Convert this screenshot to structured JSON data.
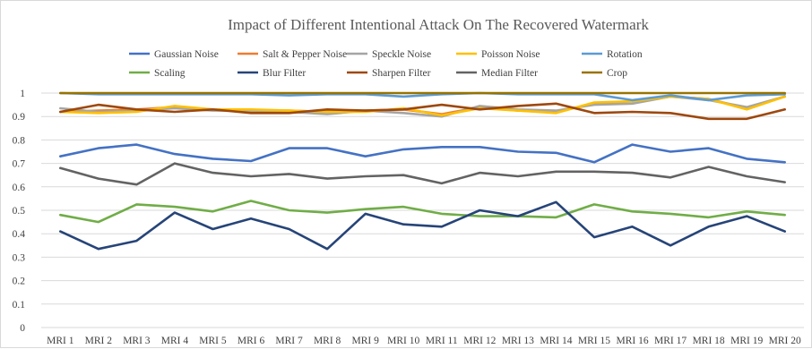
{
  "chart_data": {
    "type": "line",
    "title": "Impact of Different Intentional Attack On The Recovered Watermark",
    "xlabel": "",
    "ylabel": "",
    "ylim": [
      0,
      1
    ],
    "yticks": [
      "0",
      "0.1",
      "0.2",
      "0.3",
      "0.4",
      "0.5",
      "0.6",
      "0.7",
      "0.8",
      "0.9",
      "1"
    ],
    "grid": true,
    "legend_position": "top",
    "categories": [
      "MRI 1",
      "MRI 2",
      "MRI 3",
      "MRI 4",
      "MRI 5",
      "MRI 6",
      "MRI 7",
      "MRI 8",
      "MRI 9",
      "MRI 10",
      "MRI 11",
      "MRI 12",
      "MRI 13",
      "MRI 14",
      "MRI 15",
      "MRI 16",
      "MRI 17",
      "MRI 18",
      "MRI 19",
      "MRI 20"
    ],
    "series": [
      {
        "name": "Gaussian Noise",
        "color": "#4472c4",
        "values": [
          0.73,
          0.765,
          0.78,
          0.74,
          0.72,
          0.71,
          0.765,
          0.765,
          0.73,
          0.76,
          0.77,
          0.77,
          0.75,
          0.745,
          0.705,
          0.78,
          0.75,
          0.765,
          0.72,
          0.705
        ]
      },
      {
        "name": "Salt & Pepper Noise",
        "color": "#ed7d31",
        "values": [
          0.92,
          0.925,
          0.93,
          0.94,
          0.93,
          0.925,
          0.925,
          0.92,
          0.925,
          0.93,
          0.91,
          0.94,
          0.925,
          0.92,
          0.955,
          0.965,
          0.985,
          0.975,
          0.935,
          0.985
        ]
      },
      {
        "name": "Speckle Noise",
        "color": "#a5a5a5",
        "values": [
          0.935,
          0.92,
          0.925,
          0.935,
          0.925,
          0.925,
          0.92,
          0.91,
          0.925,
          0.915,
          0.9,
          0.945,
          0.93,
          0.925,
          0.95,
          0.955,
          0.985,
          0.97,
          0.94,
          0.985
        ]
      },
      {
        "name": "Poisson Noise",
        "color": "#ffc000",
        "values": [
          0.92,
          0.915,
          0.92,
          0.945,
          0.93,
          0.93,
          0.925,
          0.92,
          0.92,
          0.935,
          0.905,
          0.935,
          0.925,
          0.915,
          0.96,
          0.965,
          0.985,
          0.975,
          0.93,
          0.985
        ]
      },
      {
        "name": "Rotation",
        "color": "#5b9bd5",
        "values": [
          1.0,
          0.995,
          0.995,
          0.995,
          0.995,
          0.995,
          0.99,
          0.995,
          0.995,
          0.985,
          0.995,
          1.0,
          0.995,
          0.995,
          0.995,
          0.97,
          0.99,
          0.97,
          0.99,
          0.995
        ]
      },
      {
        "name": "Scaling",
        "color": "#70ad47",
        "values": [
          0.48,
          0.45,
          0.525,
          0.515,
          0.495,
          0.54,
          0.5,
          0.49,
          0.505,
          0.515,
          0.485,
          0.475,
          0.475,
          0.47,
          0.525,
          0.495,
          0.485,
          0.47,
          0.495,
          0.48
        ]
      },
      {
        "name": "Blur Filter",
        "color": "#264478",
        "values": [
          0.41,
          0.335,
          0.37,
          0.49,
          0.42,
          0.465,
          0.42,
          0.335,
          0.485,
          0.44,
          0.43,
          0.5,
          0.475,
          0.535,
          0.385,
          0.43,
          0.35,
          0.43,
          0.475,
          0.41
        ]
      },
      {
        "name": "Sharpen Filter",
        "color": "#9e480e",
        "values": [
          0.92,
          0.95,
          0.93,
          0.92,
          0.93,
          0.915,
          0.915,
          0.93,
          0.925,
          0.93,
          0.95,
          0.93,
          0.945,
          0.955,
          0.915,
          0.92,
          0.915,
          0.89,
          0.89,
          0.93
        ]
      },
      {
        "name": "Median Filter",
        "color": "#636363",
        "values": [
          0.68,
          0.635,
          0.61,
          0.7,
          0.66,
          0.645,
          0.655,
          0.635,
          0.645,
          0.65,
          0.615,
          0.66,
          0.645,
          0.665,
          0.665,
          0.66,
          0.64,
          0.685,
          0.645,
          0.62
        ]
      },
      {
        "name": "Crop",
        "color": "#997300",
        "values": [
          1.0,
          1.0,
          1.0,
          1.0,
          1.0,
          1.0,
          1.0,
          1.0,
          1.0,
          1.0,
          1.0,
          1.0,
          1.0,
          1.0,
          1.0,
          1.0,
          1.0,
          1.0,
          1.0,
          1.0
        ]
      }
    ]
  }
}
